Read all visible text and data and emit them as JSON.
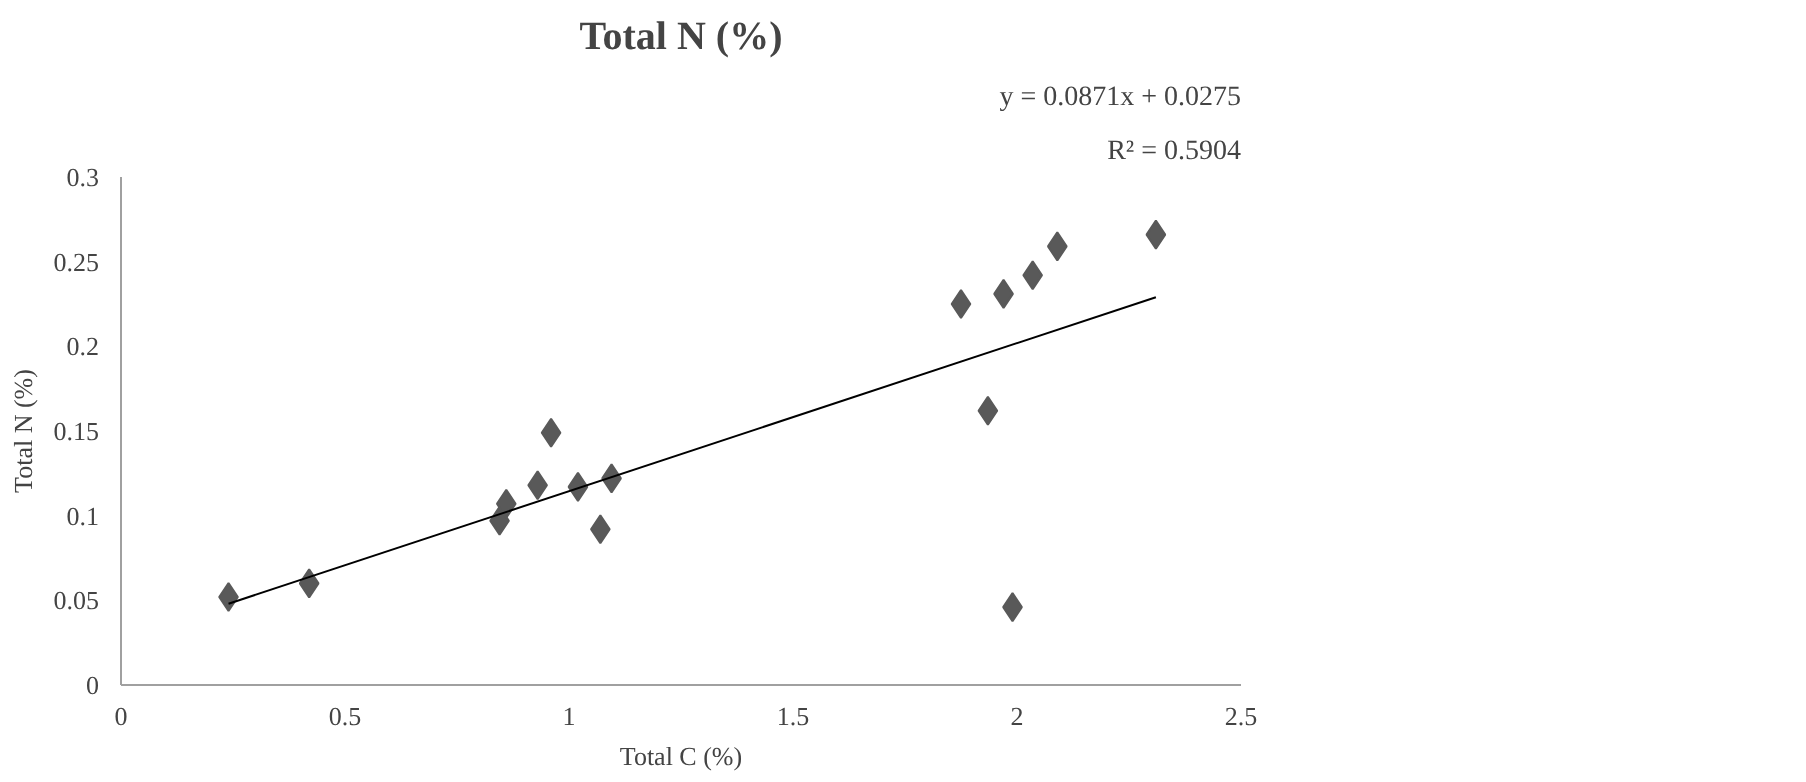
{
  "chart_data": {
    "type": "scatter",
    "title": "Total N (%)",
    "xlabel": "Total C (%)",
    "ylabel": "Total N (%)",
    "annotations": [
      "y = 0.0871x + 0.0275",
      "R² = 0.5904"
    ],
    "series": [
      {
        "color": "#595959",
        "marker": "diamond",
        "x": [
          0.24,
          0.42,
          0.845,
          0.86,
          0.93,
          0.96,
          1.02,
          1.07,
          1.095,
          1.875,
          1.935,
          1.97,
          1.99,
          2.035,
          2.09,
          2.31
        ],
        "values": [
          0.052,
          0.06,
          0.097,
          0.107,
          0.118,
          0.149,
          0.117,
          0.092,
          0.122,
          0.225,
          0.162,
          0.231,
          0.046,
          0.242,
          0.259,
          0.266
        ]
      },
      {
        "type": "line",
        "color": "#000000",
        "x": [
          0.24,
          2.31
        ],
        "values": [
          0.048,
          0.229
        ]
      }
    ],
    "xlim": [
      0,
      2.5
    ],
    "ylim": [
      0,
      0.3
    ],
    "xticks": [
      0,
      0.5,
      1,
      1.5,
      2,
      2.5
    ],
    "yticks": [
      0,
      0.05,
      0.1,
      0.15,
      0.2,
      0.25,
      0.3
    ],
    "grid": false
  }
}
